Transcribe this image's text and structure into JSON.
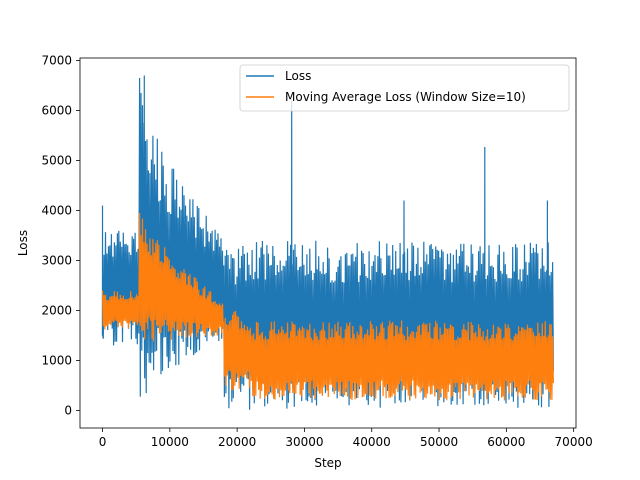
{
  "chart_data": {
    "type": "line",
    "title": "",
    "xlabel": "Step",
    "ylabel": "Loss",
    "xlim": [
      -3350,
      70350
    ],
    "ylim": [
      -350,
      7050
    ],
    "x_ticks": [
      0,
      10000,
      20000,
      30000,
      40000,
      50000,
      60000,
      70000
    ],
    "y_ticks": [
      0,
      1000,
      2000,
      3000,
      4000,
      5000,
      6000,
      7000
    ],
    "grid": false,
    "legend_position": "upper-right",
    "series": [
      {
        "name": "Loss",
        "color": "#1f77b4",
        "description_points": {
          "segments": [
            {
              "x_start": 0,
              "x_end": 5500,
              "low": 1300,
              "high": 3600,
              "pattern": "oscillating"
            },
            {
              "x_start": 5500,
              "x_end": 18000,
              "low_start": 0,
              "high_start": 6700,
              "high_end": 3500,
              "low_end": 1400,
              "pattern": "decaying-oscillation"
            },
            {
              "x_start": 18000,
              "x_end": 22000,
              "low": 0,
              "high": 3300,
              "pattern": "transition"
            },
            {
              "x_start": 22000,
              "x_end": 67000,
              "low": 30,
              "high": 3400,
              "pattern": "oscillating"
            }
          ],
          "spikes": [
            {
              "x": 0,
              "y": 4100
            },
            {
              "x": 6200,
              "y": 6700
            },
            {
              "x": 28100,
              "y": 6200
            },
            {
              "x": 44800,
              "y": 4200
            },
            {
              "x": 56800,
              "y": 5270
            },
            {
              "x": 66100,
              "y": 4200
            }
          ]
        }
      },
      {
        "name": "Moving Average Loss (Window Size=10)",
        "color": "#ff7f0e",
        "description_points": {
          "segments": [
            {
              "x_start": 0,
              "x_end": 5500,
              "low": 1600,
              "high": 2400,
              "pattern": "oscillating"
            },
            {
              "x_start": 5500,
              "x_end": 18000,
              "low_start": 1300,
              "high_start": 4300,
              "high_end": 2200,
              "low_end": 1500,
              "pattern": "decaying-oscillation"
            },
            {
              "x_start": 18000,
              "x_end": 22000,
              "low": 400,
              "high": 2000,
              "pattern": "transition"
            },
            {
              "x_start": 22000,
              "x_end": 67000,
              "low": 200,
              "high": 1800,
              "pattern": "oscillating"
            }
          ]
        }
      }
    ]
  },
  "legend": {
    "loss": "Loss",
    "moving_average": "Moving Average Loss (Window Size=10)"
  },
  "axes": {
    "xlabel": "Step",
    "ylabel": "Loss"
  }
}
